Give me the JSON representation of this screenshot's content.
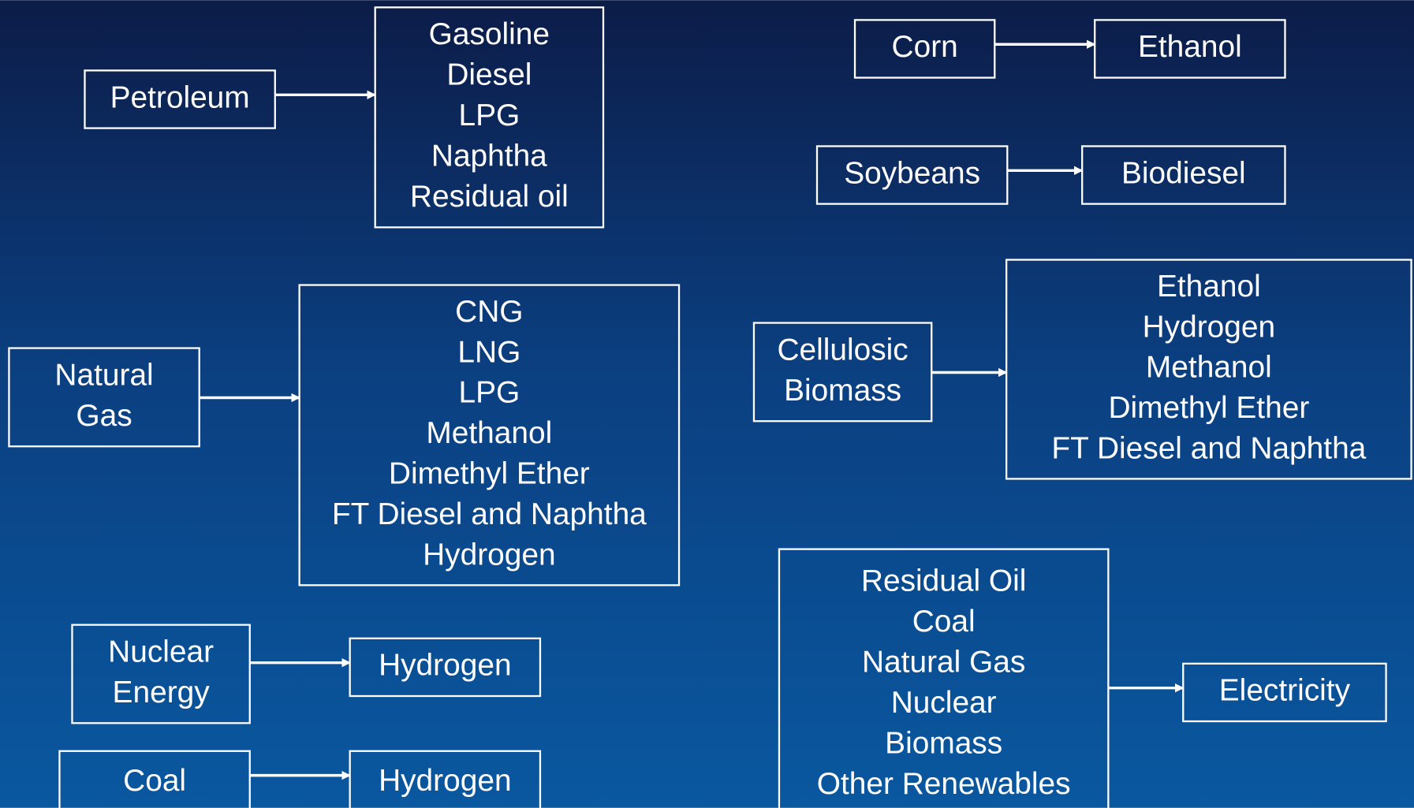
{
  "flows": [
    {
      "source": [
        "Petroleum"
      ],
      "products": [
        "Gasoline",
        "Diesel",
        "LPG",
        "Naphtha",
        "Residual oil"
      ]
    },
    {
      "source": [
        "Natural",
        "Gas"
      ],
      "products": [
        "CNG",
        "LNG",
        "LPG",
        "Methanol",
        "Dimethyl Ether",
        "FT Diesel and Naphtha",
        "Hydrogen"
      ]
    },
    {
      "source": [
        "Nuclear",
        "Energy"
      ],
      "products": [
        "Hydrogen"
      ]
    },
    {
      "source": [
        "Coal"
      ],
      "products": [
        "Hydrogen"
      ]
    },
    {
      "source": [
        "Corn"
      ],
      "products": [
        "Ethanol"
      ]
    },
    {
      "source": [
        "Soybeans"
      ],
      "products": [
        "Biodiesel"
      ]
    },
    {
      "source": [
        "Cellulosic",
        "Biomass"
      ],
      "products": [
        "Ethanol",
        "Hydrogen",
        "Methanol",
        "Dimethyl Ether",
        "FT Diesel and Naphtha"
      ]
    },
    {
      "source": [
        "Residual Oil",
        "Coal",
        "Natural Gas",
        "Nuclear",
        "Biomass",
        "Other Renewables"
      ],
      "products": [
        "Electricity"
      ]
    }
  ]
}
